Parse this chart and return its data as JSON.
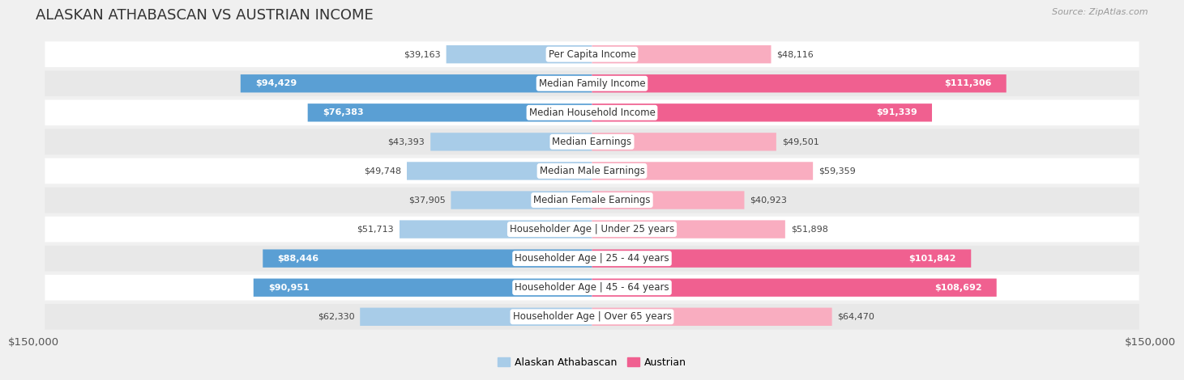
{
  "title": "ALASKAN ATHABASCAN VS AUSTRIAN INCOME",
  "source": "Source: ZipAtlas.com",
  "categories": [
    "Per Capita Income",
    "Median Family Income",
    "Median Household Income",
    "Median Earnings",
    "Median Male Earnings",
    "Median Female Earnings",
    "Householder Age | Under 25 years",
    "Householder Age | 25 - 44 years",
    "Householder Age | 45 - 64 years",
    "Householder Age | Over 65 years"
  ],
  "alaskan_values": [
    39163,
    94429,
    76383,
    43393,
    49748,
    37905,
    51713,
    88446,
    90951,
    62330
  ],
  "austrian_values": [
    48116,
    111306,
    91339,
    49501,
    59359,
    40923,
    51898,
    101842,
    108692,
    64470
  ],
  "alaskan_color_light": "#a8cce8",
  "alaskan_color_dark": "#5a9fd4",
  "austrian_color_light": "#f9adc0",
  "austrian_color_dark": "#f06090",
  "alaskan_label": "Alaskan Athabascan",
  "austrian_label": "Austrian",
  "xlim": 150000,
  "xlabel_left": "$150,000",
  "xlabel_right": "$150,000",
  "bar_height": 0.62,
  "background_color": "#f0f0f0",
  "row_bg_light": "#ffffff",
  "row_bg_dark": "#e8e8e8",
  "label_fontsize": 8.5,
  "title_fontsize": 13,
  "value_fontsize": 8,
  "inside_threshold": 70000
}
